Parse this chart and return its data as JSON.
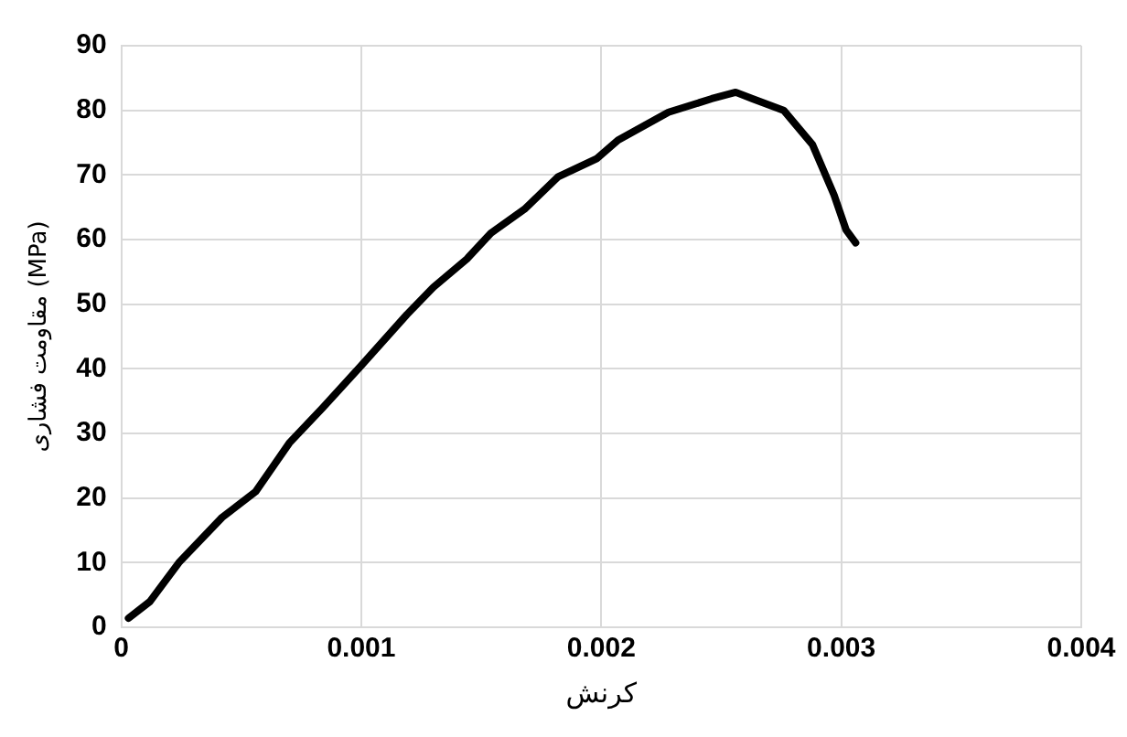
{
  "chart_data": {
    "type": "line",
    "xlabel": "کرنش",
    "ylabel": "مقاومت فشاری (MPa)",
    "xlim": [
      0,
      0.004
    ],
    "xticks": [
      0,
      0.001,
      0.002,
      0.003,
      0.004
    ],
    "ylim": [
      0,
      90
    ],
    "yticks": [
      0,
      10,
      20,
      30,
      40,
      50,
      60,
      70,
      80,
      90
    ],
    "grid": true,
    "marker": "none",
    "line_style": "solid",
    "series": [
      {
        "color": "#000000",
        "x": [
          3e-05,
          0.00012,
          0.00024,
          0.00042,
          0.00056,
          0.0007,
          0.00084,
          0.001,
          0.00119,
          0.0013,
          0.00144,
          0.00154,
          0.00168,
          0.00182,
          0.00198,
          0.00207,
          0.00228,
          0.00246,
          0.00256,
          0.00263,
          0.00276,
          0.00288,
          0.00297,
          0.00302,
          0.00306
        ],
        "values": [
          1.4,
          4,
          10,
          17,
          21,
          28.5,
          34,
          40.5,
          48.4,
          52.6,
          57,
          61,
          64.7,
          69.7,
          72.5,
          75.4,
          79.7,
          81.8,
          82.8,
          81.8,
          80,
          74.7,
          66.9,
          61.5,
          59.5
        ]
      }
    ]
  }
}
